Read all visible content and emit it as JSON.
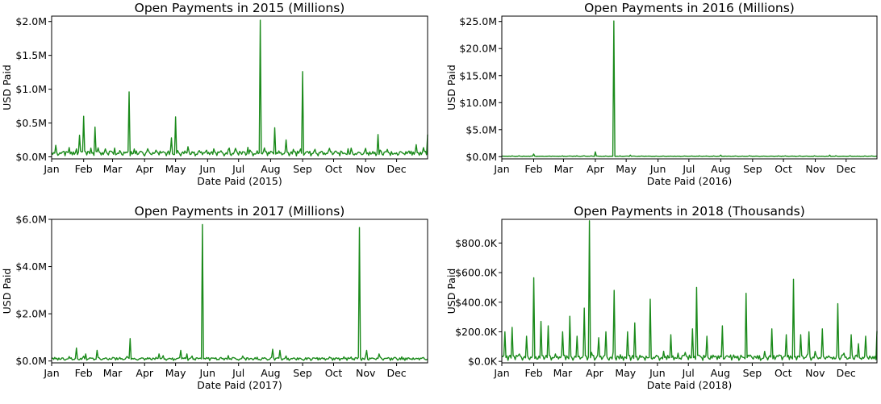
{
  "chart_data": [
    {
      "type": "line",
      "title": "Open Payments in 2015 (Millions)",
      "xlabel": "Date Paid (2015)",
      "ylabel": "USD Paid",
      "year": 2015,
      "color": "#1a8a1a",
      "grid": false,
      "xlim": [
        "2015-01-01",
        "2015-12-31"
      ],
      "ylim": [
        -0.03,
        2.08
      ],
      "yticks": [
        0,
        0.5,
        1.0,
        1.5,
        2.0
      ],
      "ytick_labels": [
        "$0.0M",
        "$0.5M",
        "$1.0M",
        "$1.5M",
        "$2.0M"
      ],
      "xtick_labels": [
        "Jan",
        "Feb",
        "Mar",
        "Apr",
        "May",
        "Jun",
        "Jul",
        "Aug",
        "Sep",
        "Oct",
        "Nov",
        "Dec"
      ],
      "baseline": 0.06,
      "peaks": [
        {
          "date": "2015-01-05",
          "value": 0.17
        },
        {
          "date": "2015-01-28",
          "value": 0.32
        },
        {
          "date": "2015-02-01",
          "value": 0.6
        },
        {
          "date": "2015-02-12",
          "value": 0.44
        },
        {
          "date": "2015-03-03",
          "value": 0.13
        },
        {
          "date": "2015-03-17",
          "value": 0.96
        },
        {
          "date": "2015-04-04",
          "value": 0.12
        },
        {
          "date": "2015-04-27",
          "value": 0.28
        },
        {
          "date": "2015-05-01",
          "value": 0.59
        },
        {
          "date": "2015-05-13",
          "value": 0.15
        },
        {
          "date": "2015-06-22",
          "value": 0.13
        },
        {
          "date": "2015-07-10",
          "value": 0.14
        },
        {
          "date": "2015-07-22",
          "value": 2.02
        },
        {
          "date": "2015-08-05",
          "value": 0.43
        },
        {
          "date": "2015-08-16",
          "value": 0.25
        },
        {
          "date": "2015-09-01",
          "value": 1.26
        },
        {
          "date": "2015-10-15",
          "value": 0.12
        },
        {
          "date": "2015-11-13",
          "value": 0.33
        },
        {
          "date": "2015-12-20",
          "value": 0.18
        },
        {
          "date": "2015-12-31",
          "value": 0.33
        }
      ]
    },
    {
      "type": "line",
      "title": "Open Payments in 2016 (Millions)",
      "xlabel": "Date Paid (2016)",
      "ylabel": "USD Paid",
      "year": 2016,
      "color": "#1a8a1a",
      "grid": false,
      "xlim": [
        "2016-01-01",
        "2016-12-31"
      ],
      "ylim": [
        -0.4,
        26.0
      ],
      "yticks": [
        0,
        5,
        10,
        15,
        20,
        25
      ],
      "ytick_labels": [
        "$0.0M",
        "$5.0M",
        "$10.0M",
        "$15.0M",
        "$20.0M",
        "$25.0M"
      ],
      "xtick_labels": [
        "Jan",
        "Feb",
        "Mar",
        "Apr",
        "May",
        "Jun",
        "Jul",
        "Aug",
        "Sep",
        "Oct",
        "Nov",
        "Dec"
      ],
      "baseline": 0.08,
      "peaks": [
        {
          "date": "2016-02-01",
          "value": 0.5
        },
        {
          "date": "2016-04-01",
          "value": 0.9
        },
        {
          "date": "2016-04-19",
          "value": 25.1
        },
        {
          "date": "2016-05-05",
          "value": 0.3
        },
        {
          "date": "2016-08-01",
          "value": 0.3
        },
        {
          "date": "2016-11-15",
          "value": 0.3
        }
      ]
    },
    {
      "type": "line",
      "title": "Open Payments in 2017 (Millions)",
      "xlabel": "Date Paid (2017)",
      "ylabel": "USD Paid",
      "year": 2017,
      "color": "#1a8a1a",
      "grid": false,
      "xlim": [
        "2017-01-01",
        "2017-12-31"
      ],
      "ylim": [
        -0.08,
        6.0
      ],
      "yticks": [
        0,
        2,
        4,
        6
      ],
      "ytick_labels": [
        "$0.0M",
        "$2.0M",
        "$4.0M",
        "$6.0M"
      ],
      "xtick_labels": [
        "Jan",
        "Feb",
        "Mar",
        "Apr",
        "May",
        "Jun",
        "Jul",
        "Aug",
        "Sep",
        "Oct",
        "Nov",
        "Dec"
      ],
      "baseline": 0.1,
      "peaks": [
        {
          "date": "2017-01-25",
          "value": 0.55
        },
        {
          "date": "2017-02-03",
          "value": 0.3
        },
        {
          "date": "2017-02-14",
          "value": 0.45
        },
        {
          "date": "2017-03-18",
          "value": 0.95
        },
        {
          "date": "2017-04-15",
          "value": 0.3
        },
        {
          "date": "2017-05-06",
          "value": 0.45
        },
        {
          "date": "2017-05-12",
          "value": 0.3
        },
        {
          "date": "2017-05-27",
          "value": 5.78
        },
        {
          "date": "2017-08-03",
          "value": 0.5
        },
        {
          "date": "2017-08-10",
          "value": 0.45
        },
        {
          "date": "2017-10-26",
          "value": 5.65
        },
        {
          "date": "2017-11-02",
          "value": 0.45
        },
        {
          "date": "2017-11-14",
          "value": 0.3
        }
      ]
    },
    {
      "type": "line",
      "title": "Open Payments in 2018 (Thousands)",
      "xlabel": "Date Paid (2018)",
      "ylabel": "USD Paid",
      "year": 2018,
      "color": "#1a8a1a",
      "grid": false,
      "xlim": [
        "2018-01-01",
        "2018-12-31"
      ],
      "ylim": [
        -10,
        960
      ],
      "yticks": [
        0,
        200,
        400,
        600,
        800
      ],
      "ytick_labels": [
        "$0.0K",
        "$200.0K",
        "$400.0K",
        "$600.0K",
        "$800.0K"
      ],
      "xtick_labels": [
        "Jan",
        "Feb",
        "Mar",
        "Apr",
        "May",
        "Jun",
        "Jul",
        "Aug",
        "Sep",
        "Oct",
        "Nov",
        "Dec"
      ],
      "baseline": 30,
      "peaks": [
        {
          "date": "2018-01-04",
          "value": 200
        },
        {
          "date": "2018-01-11",
          "value": 230
        },
        {
          "date": "2018-01-25",
          "value": 170
        },
        {
          "date": "2018-02-01",
          "value": 565
        },
        {
          "date": "2018-02-08",
          "value": 270
        },
        {
          "date": "2018-02-15",
          "value": 240
        },
        {
          "date": "2018-03-01",
          "value": 200
        },
        {
          "date": "2018-03-08",
          "value": 305
        },
        {
          "date": "2018-03-15",
          "value": 170
        },
        {
          "date": "2018-03-22",
          "value": 360
        },
        {
          "date": "2018-03-27",
          "value": 950
        },
        {
          "date": "2018-04-05",
          "value": 160
        },
        {
          "date": "2018-04-12",
          "value": 200
        },
        {
          "date": "2018-04-20",
          "value": 480
        },
        {
          "date": "2018-05-03",
          "value": 200
        },
        {
          "date": "2018-05-10",
          "value": 260
        },
        {
          "date": "2018-05-25",
          "value": 420
        },
        {
          "date": "2018-06-14",
          "value": 180
        },
        {
          "date": "2018-07-05",
          "value": 220
        },
        {
          "date": "2018-07-09",
          "value": 500
        },
        {
          "date": "2018-07-19",
          "value": 170
        },
        {
          "date": "2018-08-03",
          "value": 240
        },
        {
          "date": "2018-08-26",
          "value": 460
        },
        {
          "date": "2018-09-20",
          "value": 220
        },
        {
          "date": "2018-10-04",
          "value": 180
        },
        {
          "date": "2018-10-11",
          "value": 555
        },
        {
          "date": "2018-10-18",
          "value": 180
        },
        {
          "date": "2018-10-26",
          "value": 200
        },
        {
          "date": "2018-11-08",
          "value": 220
        },
        {
          "date": "2018-11-23",
          "value": 390
        },
        {
          "date": "2018-12-06",
          "value": 180
        },
        {
          "date": "2018-12-13",
          "value": 120
        },
        {
          "date": "2018-12-20",
          "value": 170
        },
        {
          "date": "2018-12-31",
          "value": 205
        }
      ]
    }
  ]
}
